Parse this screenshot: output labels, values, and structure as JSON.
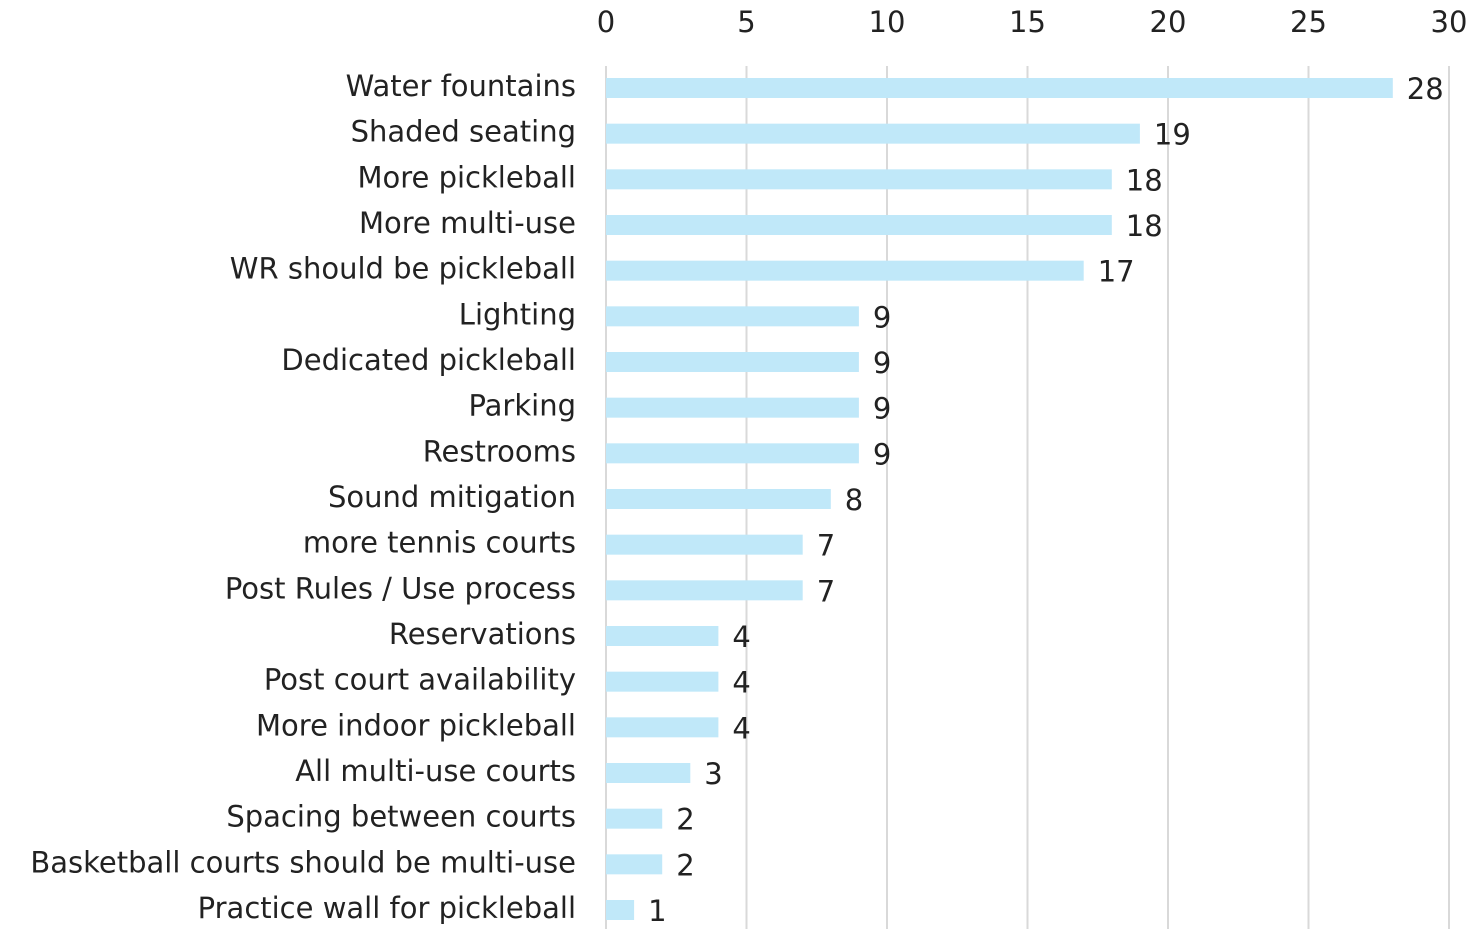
{
  "chart_data": {
    "type": "bar",
    "orientation": "horizontal",
    "categories": [
      "Water fountains",
      "Shaded seating",
      "More pickleball",
      "More multi-use",
      "WR should be pickleball",
      "Lighting",
      "Dedicated pickleball",
      "Parking",
      "Restrooms",
      "Sound mitigation",
      "more tennis courts",
      "Post Rules / Use process",
      "Reservations",
      "Post court availability",
      "More indoor pickleball",
      "All multi-use courts",
      "Spacing between courts",
      "Basketball courts should be multi-use",
      "Practice wall for pickleball"
    ],
    "values": [
      28,
      19,
      18,
      18,
      17,
      9,
      9,
      9,
      9,
      8,
      7,
      7,
      4,
      4,
      4,
      3,
      2,
      2,
      1
    ],
    "color": "#c0e8f9",
    "xlim": [
      0,
      30
    ],
    "xticks": [
      0,
      5,
      10,
      15,
      20,
      25,
      30
    ],
    "grid": true
  }
}
